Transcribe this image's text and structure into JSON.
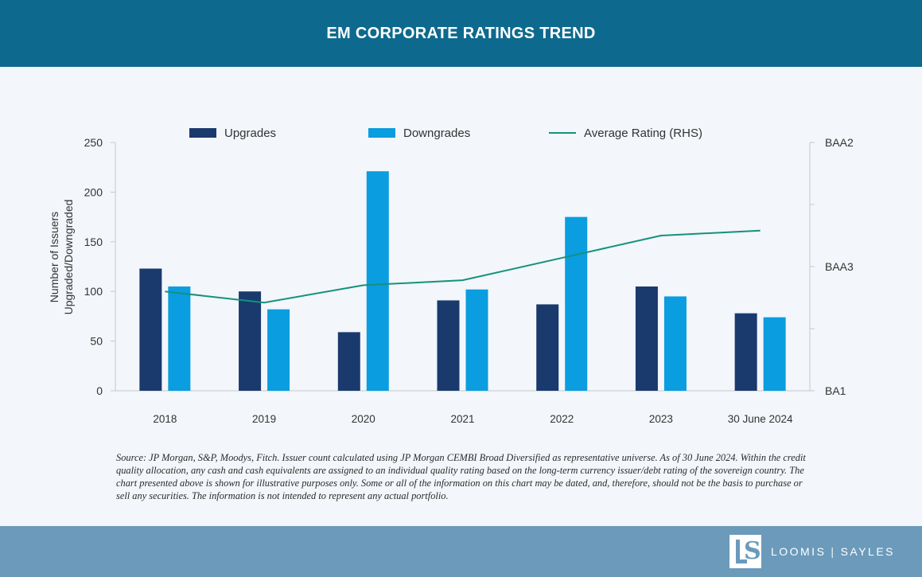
{
  "header": {
    "title": "EM CORPORATE RATINGS TREND"
  },
  "chart_data": {
    "type": "bar",
    "categories": [
      "2018",
      "2019",
      "2020",
      "2021",
      "2022",
      "2023",
      "30 June 2024"
    ],
    "series": [
      {
        "name": "Upgrades",
        "kind": "bar",
        "axis": "left",
        "color": "#1a3a6e",
        "values": [
          123,
          100,
          59,
          91,
          87,
          105,
          78
        ]
      },
      {
        "name": "Downgrades",
        "kind": "bar",
        "axis": "left",
        "color": "#0a9de0",
        "values": [
          105,
          82,
          221,
          102,
          175,
          95,
          74
        ]
      },
      {
        "name": "Average Rating (RHS)",
        "kind": "line",
        "axis": "right",
        "color": "#13927c",
        "values": [
          0.8,
          0.71,
          0.85,
          0.89,
          1.07,
          1.25,
          1.29
        ]
      }
    ],
    "ylabel": [
      "Number of Issuers",
      "Upgraded/Downgraded"
    ],
    "ylim": [
      0,
      250
    ],
    "yticks": [
      "0",
      "50",
      "100",
      "150",
      "200",
      "250"
    ],
    "y2lim": [
      0,
      2
    ],
    "y2ticks": [
      "BA1",
      "BAA3",
      "BAA2"
    ],
    "grid": false,
    "legend": "top-center"
  },
  "source_note": "Source: JP Morgan, S&P, Moodys, Fitch. Issuer count calculated using JP Morgan CEMBI Broad Diversified as representative universe. As of 30 June 2024. Within the credit quality allocation, any cash and cash equivalents are assigned to an individual quality rating based on the long-term currency issuer/debt rating of the sovereign country. The chart presented above is shown for illustrative purposes only. Some or all of the information on this chart may be dated, and, therefore, should not be the basis to purchase or sell any securities. The information is not intended to represent any actual portfolio.",
  "footer": {
    "logo_left": "LOOMIS",
    "logo_right": "SAYLES",
    "logo_separator": "|"
  }
}
